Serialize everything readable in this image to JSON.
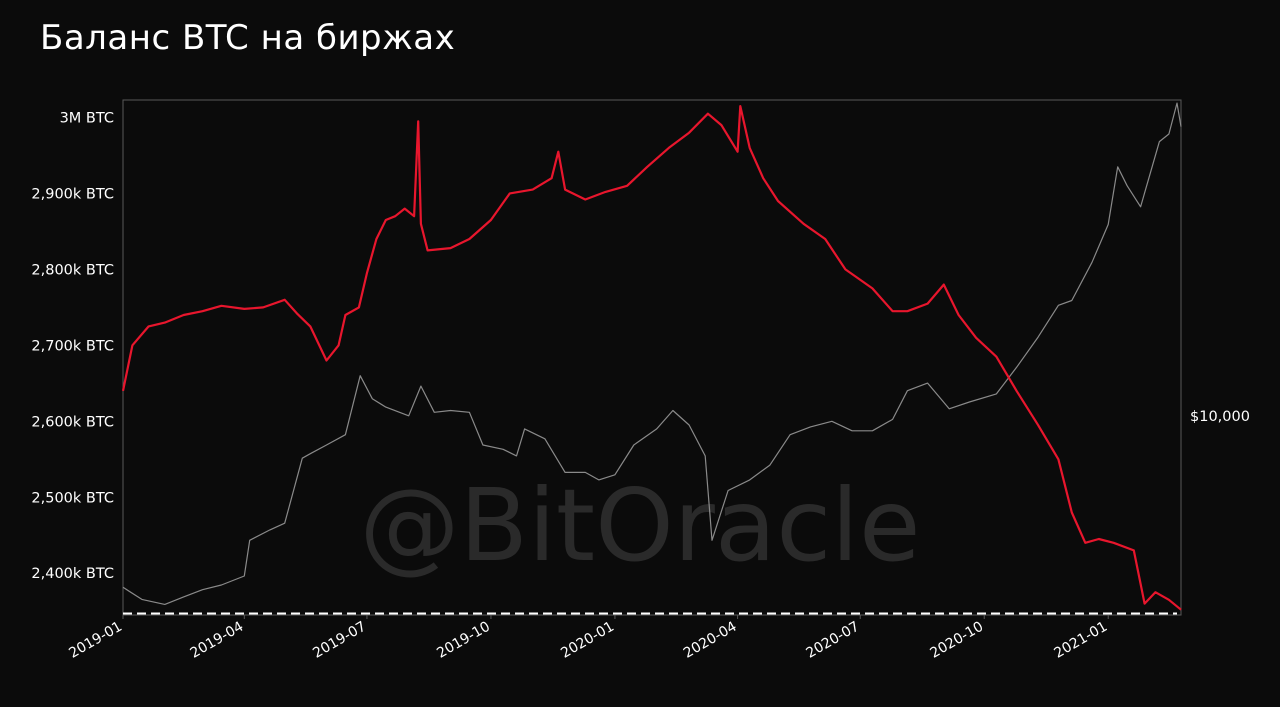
{
  "chart_data": {
    "type": "line",
    "title": "Баланс BTC на биржах",
    "watermark": "@BitOracle",
    "x_ticks": [
      "2019-01",
      "2019-04",
      "2019-07",
      "2019-10",
      "2020-01",
      "2020-04",
      "2020-07",
      "2020-10",
      "2021-01"
    ],
    "x_range": [
      "2019-01-01",
      "2021-02-24"
    ],
    "y_left": {
      "unit": "BTC",
      "range": [
        2345000,
        3023000
      ],
      "ticks": [
        {
          "value": 2400000,
          "label": "2,400k BTC"
        },
        {
          "value": 2500000,
          "label": "2,500k BTC"
        },
        {
          "value": 2600000,
          "label": "2,600k BTC"
        },
        {
          "value": 2700000,
          "label": "2,700k BTC"
        },
        {
          "value": 2800000,
          "label": "2,800k BTC"
        },
        {
          "value": 2900000,
          "label": "2,900k BTC"
        },
        {
          "value": 3000000,
          "label": "3M BTC"
        }
      ]
    },
    "y_right": {
      "scale": "log",
      "range": [
        3300,
        58000
      ],
      "ticks": [
        {
          "value": 10000,
          "label": "$10,000"
        }
      ]
    },
    "reference_line": {
      "value": 2347000,
      "style": "dashed",
      "color": "#ffffff"
    },
    "series": [
      {
        "axis": "left",
        "color": "#e8162d",
        "points": [
          [
            "2019-01-01",
            2640000
          ],
          [
            "2019-01-08",
            2700000
          ],
          [
            "2019-01-20",
            2725000
          ],
          [
            "2019-02-01",
            2730000
          ],
          [
            "2019-02-15",
            2740000
          ],
          [
            "2019-03-01",
            2745000
          ],
          [
            "2019-03-15",
            2752000
          ],
          [
            "2019-04-01",
            2748000
          ],
          [
            "2019-04-15",
            2750000
          ],
          [
            "2019-05-01",
            2760000
          ],
          [
            "2019-05-10",
            2742000
          ],
          [
            "2019-05-20",
            2725000
          ],
          [
            "2019-06-01",
            2680000
          ],
          [
            "2019-06-10",
            2700000
          ],
          [
            "2019-06-15",
            2740000
          ],
          [
            "2019-06-25",
            2750000
          ],
          [
            "2019-07-01",
            2795000
          ],
          [
            "2019-07-08",
            2840000
          ],
          [
            "2019-07-15",
            2865000
          ],
          [
            "2019-07-22",
            2870000
          ],
          [
            "2019-07-29",
            2880000
          ],
          [
            "2019-08-05",
            2870000
          ],
          [
            "2019-08-08",
            2995000
          ],
          [
            "2019-08-10",
            2860000
          ],
          [
            "2019-08-15",
            2825000
          ],
          [
            "2019-09-01",
            2828000
          ],
          [
            "2019-09-15",
            2840000
          ],
          [
            "2019-10-01",
            2865000
          ],
          [
            "2019-10-15",
            2900000
          ],
          [
            "2019-11-01",
            2905000
          ],
          [
            "2019-11-15",
            2920000
          ],
          [
            "2019-11-20",
            2955000
          ],
          [
            "2019-11-25",
            2905000
          ],
          [
            "2019-12-10",
            2892000
          ],
          [
            "2019-12-25",
            2902000
          ],
          [
            "2020-01-10",
            2910000
          ],
          [
            "2020-01-25",
            2935000
          ],
          [
            "2020-02-10",
            2960000
          ],
          [
            "2020-02-25",
            2980000
          ],
          [
            "2020-03-10",
            3005000
          ],
          [
            "2020-03-20",
            2990000
          ],
          [
            "2020-04-01",
            2955000
          ],
          [
            "2020-04-03",
            3015000
          ],
          [
            "2020-04-10",
            2960000
          ],
          [
            "2020-04-20",
            2920000
          ],
          [
            "2020-05-01",
            2890000
          ],
          [
            "2020-05-20",
            2860000
          ],
          [
            "2020-06-05",
            2840000
          ],
          [
            "2020-06-20",
            2800000
          ],
          [
            "2020-07-10",
            2775000
          ],
          [
            "2020-07-25",
            2745000
          ],
          [
            "2020-08-05",
            2745000
          ],
          [
            "2020-08-20",
            2755000
          ],
          [
            "2020-09-01",
            2780000
          ],
          [
            "2020-09-12",
            2740000
          ],
          [
            "2020-09-25",
            2710000
          ],
          [
            "2020-10-10",
            2685000
          ],
          [
            "2020-10-25",
            2640000
          ],
          [
            "2020-11-10",
            2595000
          ],
          [
            "2020-11-25",
            2550000
          ],
          [
            "2020-12-05",
            2480000
          ],
          [
            "2020-12-15",
            2440000
          ],
          [
            "2020-12-25",
            2445000
          ],
          [
            "2021-01-05",
            2440000
          ],
          [
            "2021-01-20",
            2430000
          ],
          [
            "2021-01-28",
            2360000
          ],
          [
            "2021-02-05",
            2375000
          ],
          [
            "2021-02-15",
            2365000
          ],
          [
            "2021-02-24",
            2352000
          ]
        ]
      },
      {
        "axis": "right",
        "color": "#8a8a8a",
        "points": [
          [
            "2019-01-01",
            3850
          ],
          [
            "2019-01-15",
            3600
          ],
          [
            "2019-02-01",
            3500
          ],
          [
            "2019-02-15",
            3650
          ],
          [
            "2019-03-01",
            3800
          ],
          [
            "2019-03-15",
            3900
          ],
          [
            "2019-04-01",
            4100
          ],
          [
            "2019-04-05",
            5000
          ],
          [
            "2019-04-20",
            5300
          ],
          [
            "2019-05-01",
            5500
          ],
          [
            "2019-05-14",
            7900
          ],
          [
            "2019-05-20",
            8100
          ],
          [
            "2019-06-01",
            8500
          ],
          [
            "2019-06-15",
            9000
          ],
          [
            "2019-06-26",
            12500
          ],
          [
            "2019-07-05",
            11000
          ],
          [
            "2019-07-15",
            10500
          ],
          [
            "2019-08-01",
            10000
          ],
          [
            "2019-08-10",
            11800
          ],
          [
            "2019-08-20",
            10200
          ],
          [
            "2019-09-01",
            10300
          ],
          [
            "2019-09-15",
            10200
          ],
          [
            "2019-09-25",
            8500
          ],
          [
            "2019-10-10",
            8300
          ],
          [
            "2019-10-20",
            8000
          ],
          [
            "2019-10-26",
            9300
          ],
          [
            "2019-11-10",
            8800
          ],
          [
            "2019-11-25",
            7300
          ],
          [
            "2019-12-10",
            7300
          ],
          [
            "2019-12-20",
            7000
          ],
          [
            "2020-01-01",
            7200
          ],
          [
            "2020-01-15",
            8500
          ],
          [
            "2020-02-01",
            9300
          ],
          [
            "2020-02-13",
            10300
          ],
          [
            "2020-02-25",
            9500
          ],
          [
            "2020-03-08",
            8000
          ],
          [
            "2020-03-13",
            5000
          ],
          [
            "2020-03-25",
            6600
          ],
          [
            "2020-04-10",
            7000
          ],
          [
            "2020-04-25",
            7600
          ],
          [
            "2020-05-10",
            9000
          ],
          [
            "2020-05-25",
            9400
          ],
          [
            "2020-06-10",
            9700
          ],
          [
            "2020-06-25",
            9200
          ],
          [
            "2020-07-10",
            9200
          ],
          [
            "2020-07-25",
            9800
          ],
          [
            "2020-08-05",
            11500
          ],
          [
            "2020-08-20",
            12000
          ],
          [
            "2020-09-05",
            10400
          ],
          [
            "2020-09-20",
            10800
          ],
          [
            "2020-10-10",
            11300
          ],
          [
            "2020-10-25",
            13100
          ],
          [
            "2020-11-10",
            15500
          ],
          [
            "2020-11-25",
            18500
          ],
          [
            "2020-12-05",
            19000
          ],
          [
            "2020-12-20",
            23500
          ],
          [
            "2021-01-01",
            29000
          ],
          [
            "2021-01-08",
            40000
          ],
          [
            "2021-01-15",
            36000
          ],
          [
            "2021-01-25",
            32000
          ],
          [
            "2021-02-08",
            46000
          ],
          [
            "2021-02-15",
            48000
          ],
          [
            "2021-02-21",
            57000
          ],
          [
            "2021-02-24",
            50000
          ]
        ]
      }
    ]
  }
}
